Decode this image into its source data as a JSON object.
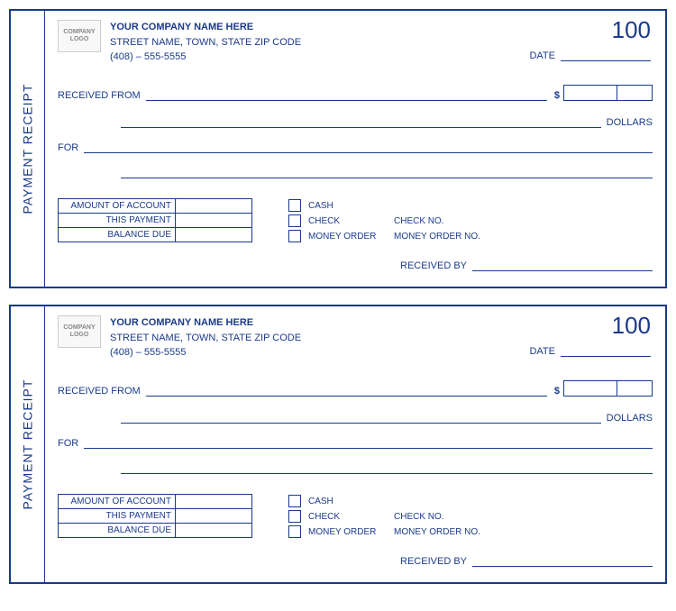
{
  "sideLabel": "PAYMENT RECEIPT",
  "logo": {
    "line1": "COMPANY",
    "line2": "LOGO"
  },
  "company": {
    "name": "YOUR COMPANY NAME HERE",
    "address": "STREET NAME, TOWN, STATE  ZIP CODE",
    "phone": "(408) – 555-5555"
  },
  "receiptNumber": "100",
  "labels": {
    "date": "DATE",
    "receivedFrom": "RECEIVED FROM",
    "dollarSign": "$",
    "dollars": "DOLLARS",
    "for": "FOR",
    "receivedBy": "RECEIVED BY"
  },
  "accountTable": {
    "rows": [
      {
        "label": "AMOUNT OF ACCOUNT",
        "value": ""
      },
      {
        "label": "THIS PAYMENT",
        "value": ""
      },
      {
        "label": "BALANCE DUE",
        "value": ""
      }
    ]
  },
  "paymentTypes": [
    {
      "label": "CASH",
      "ref": ""
    },
    {
      "label": "CHECK",
      "ref": "CHECK NO."
    },
    {
      "label": "MONEY ORDER",
      "ref": "MONEY ORDER NO."
    }
  ],
  "colors": {
    "primary": "#1a3a8a",
    "background": "#ffffff",
    "logoBorder": "#cccccc",
    "logoText": "#888888"
  }
}
